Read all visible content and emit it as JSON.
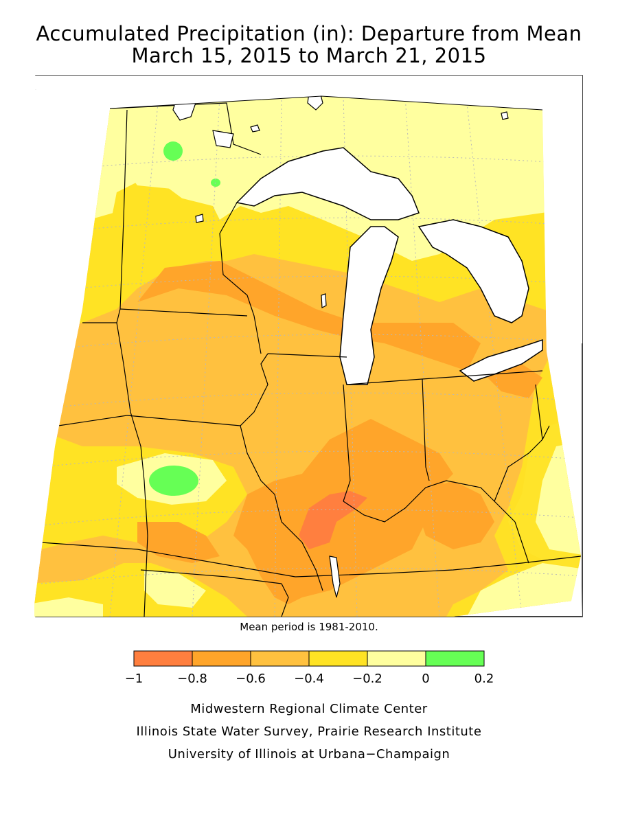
{
  "title": {
    "line1": "Accumulated Precipitation (in): Departure from Mean",
    "line2": "March 15, 2015 to March 21, 2015"
  },
  "note": "Mean period is 1981-2010.",
  "legend": {
    "bins": [
      {
        "from": -1.0,
        "to": -0.8,
        "color": "#ff7f3f"
      },
      {
        "from": -0.8,
        "to": -0.6,
        "color": "#ffa52a"
      },
      {
        "from": -0.6,
        "to": -0.4,
        "color": "#ffc13f"
      },
      {
        "from": -0.4,
        "to": -0.2,
        "color": "#ffe324"
      },
      {
        "from": -0.2,
        "to": 0.0,
        "color": "#ffff9f"
      },
      {
        "from": 0.0,
        "to": 0.2,
        "color": "#66ff55"
      }
    ],
    "tick_labels": [
      "−1",
      "−0.8",
      "−0.6",
      "−0.4",
      "−0.2",
      "0",
      "0.2"
    ]
  },
  "credits": {
    "line1": "Midwestern Regional Climate Center",
    "line2": "Illinois State Water Survey, Prairie Research Institute",
    "line3": "University of Illinois at Urbana−Champaign"
  },
  "colors": {
    "water": "#ffffff",
    "outline": "#000000",
    "grid": "#b8b8b8"
  }
}
